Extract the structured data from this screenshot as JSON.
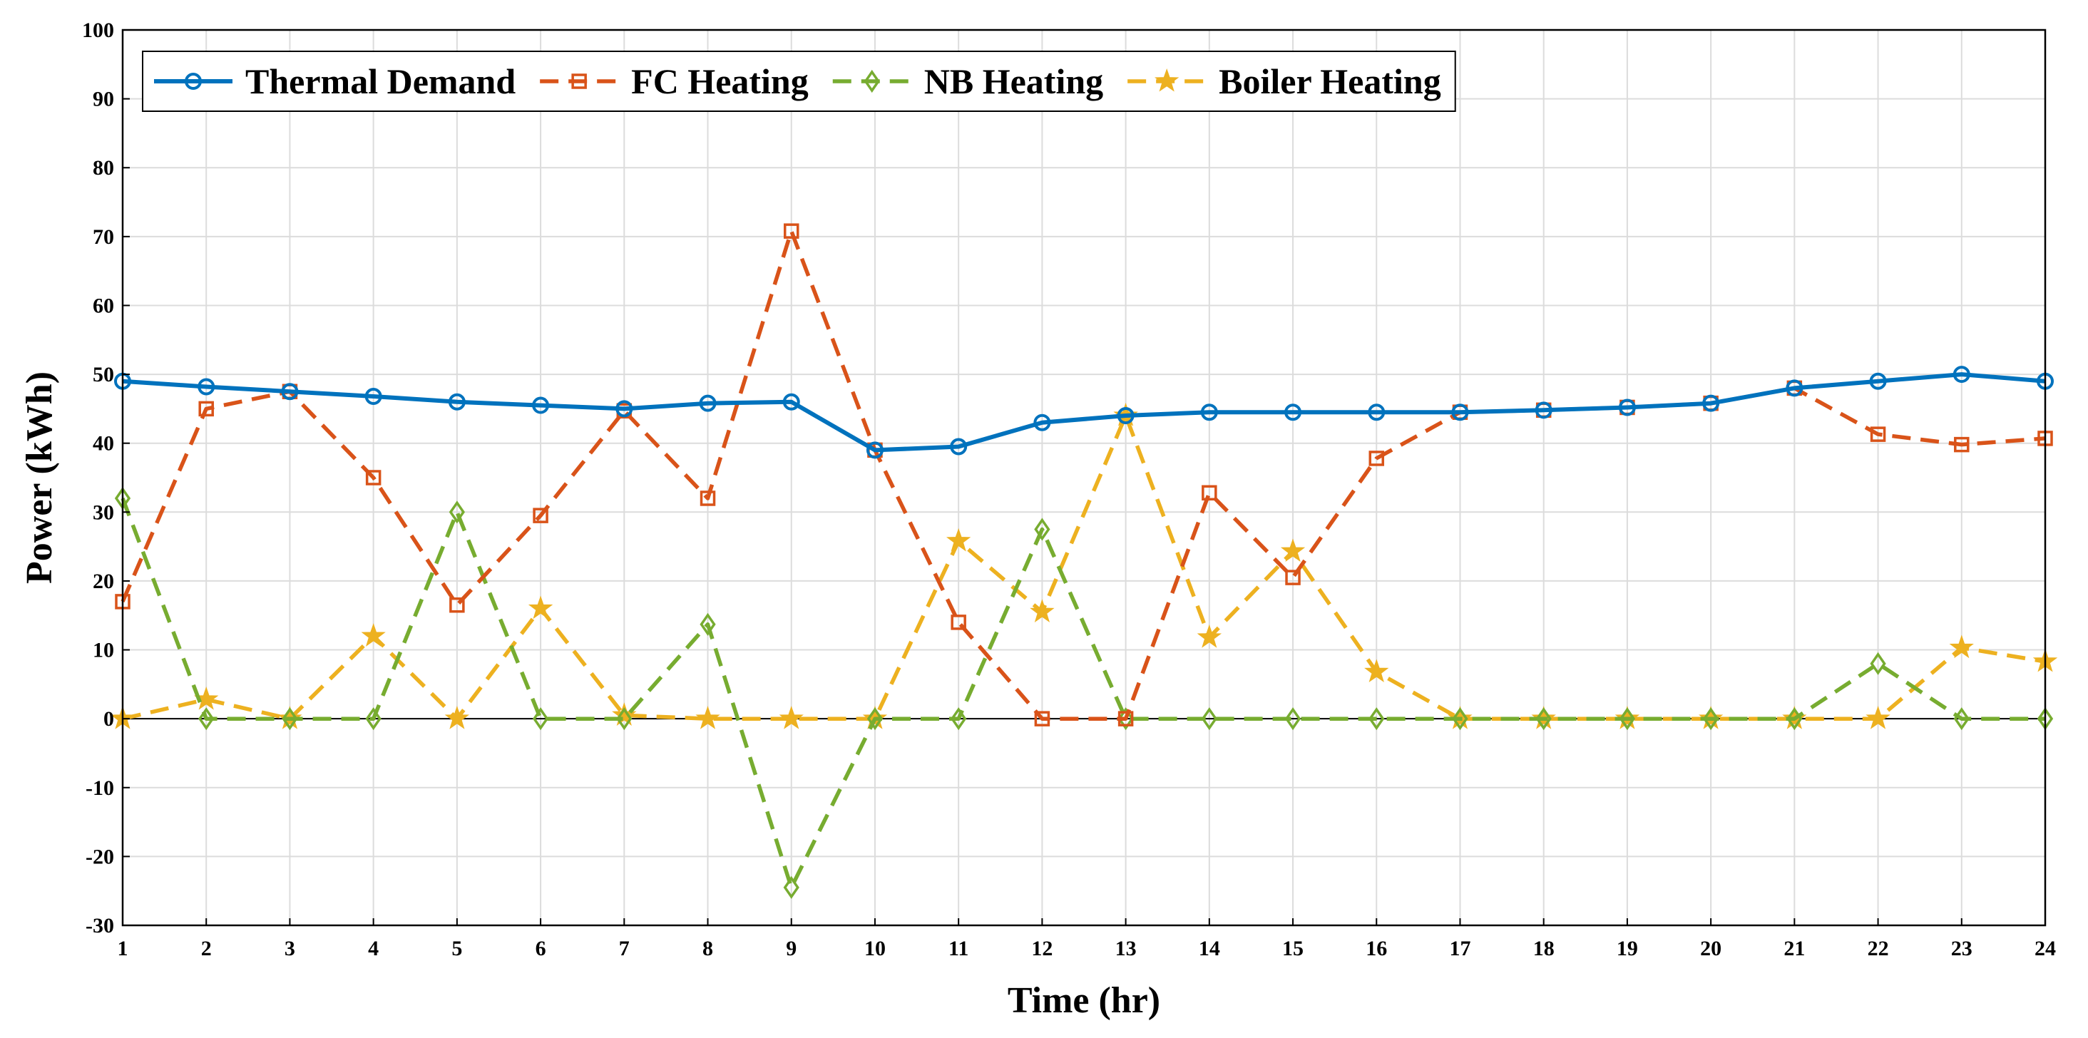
{
  "chart_data": {
    "type": "line",
    "title": "",
    "xlabel": "Time (hr)",
    "ylabel": "Power (kWh)",
    "xlim": [
      1,
      24
    ],
    "ylim": [
      -30,
      100
    ],
    "x": [
      1,
      2,
      3,
      4,
      5,
      6,
      7,
      8,
      9,
      10,
      11,
      12,
      13,
      14,
      15,
      16,
      17,
      18,
      19,
      20,
      21,
      22,
      23,
      24
    ],
    "x_ticks": [
      1,
      2,
      3,
      4,
      5,
      6,
      7,
      8,
      9,
      10,
      11,
      12,
      13,
      14,
      15,
      16,
      17,
      18,
      19,
      20,
      21,
      22,
      23,
      24
    ],
    "y_ticks": [
      -30,
      -20,
      -10,
      0,
      10,
      20,
      30,
      40,
      50,
      60,
      70,
      80,
      90,
      100
    ],
    "grid": true,
    "legend_position": "top-left, horizontal",
    "series": [
      {
        "name": "Thermal Demand",
        "color": "#0072BD",
        "line": "solid",
        "marker": "circle",
        "values": [
          49,
          48.2,
          47.5,
          46.8,
          46,
          45.5,
          45,
          45.8,
          46,
          39,
          39.5,
          43,
          44,
          44.5,
          44.5,
          44.5,
          44.5,
          44.8,
          45.2,
          45.8,
          48,
          49,
          50,
          49
        ]
      },
      {
        "name": "FC Heating",
        "color": "#D95319",
        "line": "dashed",
        "marker": "square",
        "values": [
          17,
          45,
          47.5,
          35,
          16.5,
          29.5,
          44.7,
          32,
          70.8,
          39,
          14,
          0,
          0,
          32.8,
          20.5,
          37.8,
          44.5,
          44.8,
          45.2,
          45.8,
          48,
          41.3,
          39.8,
          40.7
        ]
      },
      {
        "name": "NB Heating",
        "color": "#77AC30",
        "line": "dashed",
        "marker": "diamond",
        "values": [
          32,
          0,
          0,
          0,
          30,
          0,
          0,
          13.7,
          -24.5,
          0,
          0,
          27.5,
          0,
          0,
          0,
          0,
          0,
          0,
          0,
          0,
          0,
          8,
          0,
          0
        ]
      },
      {
        "name": "Boiler Heating",
        "color": "#EDB120",
        "line": "dashed",
        "marker": "star",
        "values": [
          0,
          2.8,
          0,
          12,
          0,
          16,
          0.5,
          0,
          0,
          0,
          25.8,
          15.5,
          44,
          11.8,
          24.3,
          6.8,
          0,
          0,
          0,
          0,
          0,
          0,
          10.3,
          8.3
        ]
      }
    ]
  }
}
